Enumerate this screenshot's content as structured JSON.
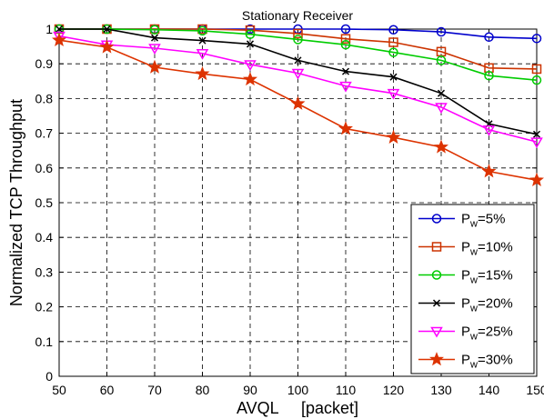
{
  "chart_data": {
    "type": "line",
    "title": "Stationary Receiver",
    "xlabel": "AVQL     [packet]",
    "ylabel": "Normalized TCP Throughput",
    "x": [
      50,
      60,
      70,
      80,
      90,
      100,
      110,
      120,
      130,
      140,
      150
    ],
    "xlim": [
      50,
      150
    ],
    "ylim": [
      0,
      1
    ],
    "xticks": [
      "50",
      "60",
      "70",
      "80",
      "90",
      "100",
      "110",
      "120",
      "130",
      "140",
      "150"
    ],
    "yticks": [
      "0",
      "0.1",
      "0.2",
      "0.3",
      "0.4",
      "0.5",
      "0.6",
      "0.7",
      "0.8",
      "0.9",
      "1"
    ],
    "grid": true,
    "legend_position": "bottom-right",
    "series": [
      {
        "name_main": "P",
        "name_sub": "w",
        "name_tail": "=5%",
        "color": "#0000cc",
        "marker": "circle",
        "values": [
          1.0,
          1.0,
          1.0,
          1.0,
          1.0,
          1.0,
          1.0,
          0.998,
          0.992,
          0.977,
          0.973
        ]
      },
      {
        "name_main": "P",
        "name_sub": "w",
        "name_tail": "=10%",
        "color": "#cc3300",
        "marker": "square",
        "values": [
          1.0,
          1.0,
          1.0,
          1.0,
          0.997,
          0.987,
          0.972,
          0.962,
          0.935,
          0.888,
          0.885
        ]
      },
      {
        "name_main": "P",
        "name_sub": "w",
        "name_tail": "=15%",
        "color": "#00cc00",
        "marker": "circle",
        "values": [
          1.0,
          1.0,
          0.998,
          0.995,
          0.985,
          0.97,
          0.955,
          0.933,
          0.91,
          0.866,
          0.853
        ]
      },
      {
        "name_main": "P",
        "name_sub": "w",
        "name_tail": "=20%",
        "color": "#000000",
        "marker": "x",
        "values": [
          1.0,
          1.0,
          0.975,
          0.967,
          0.957,
          0.91,
          0.878,
          0.862,
          0.815,
          0.727,
          0.697
        ]
      },
      {
        "name_main": "P",
        "name_sub": "w",
        "name_tail": "=25%",
        "color": "#ff00ff",
        "marker": "triangle-down",
        "values": [
          0.98,
          0.955,
          0.945,
          0.93,
          0.898,
          0.873,
          0.836,
          0.815,
          0.775,
          0.71,
          0.675
        ]
      },
      {
        "name_main": "P",
        "name_sub": "w",
        "name_tail": "=30%",
        "color": "#dd3300",
        "marker": "star",
        "values": [
          0.968,
          0.948,
          0.89,
          0.871,
          0.855,
          0.785,
          0.713,
          0.688,
          0.66,
          0.59,
          0.565
        ]
      }
    ]
  }
}
